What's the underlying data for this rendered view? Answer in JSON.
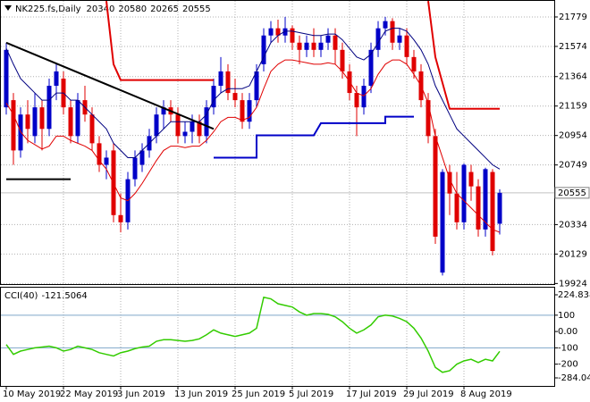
{
  "chart_data": [
    {
      "type": "candlestick",
      "title": "NK225.fs,Daily",
      "categories": [
        "10 May 2019",
        null,
        null,
        null,
        null,
        null,
        null,
        null,
        "22 May 2019",
        null,
        null,
        null,
        null,
        null,
        null,
        null,
        "3 Jun 2019",
        null,
        null,
        null,
        null,
        null,
        null,
        null,
        "13 Jun 2019",
        null,
        null,
        null,
        null,
        null,
        null,
        null,
        "25 Jun 2019",
        null,
        null,
        null,
        null,
        null,
        null,
        null,
        "5 Jul 2019",
        null,
        null,
        null,
        null,
        null,
        null,
        null,
        "17 Jul 2019",
        null,
        null,
        null,
        null,
        null,
        null,
        null,
        "29 Jul 2019",
        null,
        null,
        null,
        null,
        null,
        null,
        null,
        "8 Aug 2019",
        null,
        null,
        null,
        null,
        null
      ],
      "open": [
        21150,
        21200,
        20850,
        21100,
        20950,
        21150,
        21000,
        21300,
        21350,
        21150,
        20950,
        21200,
        21100,
        20900,
        20750,
        20850,
        20400,
        20350,
        20650,
        20750,
        20850,
        20950,
        21100,
        21150,
        21100,
        20950,
        20980,
        21050,
        20950,
        21150,
        21300,
        21400,
        21250,
        21200,
        21050,
        21200,
        21450,
        21650,
        21700,
        21650,
        21700,
        21600,
        21550,
        21600,
        21550,
        21600,
        21650,
        21550,
        21400,
        21250,
        21150,
        21300,
        21550,
        21700,
        21750,
        21600,
        21650,
        21500,
        21400,
        21200,
        20950,
        20000,
        20700,
        20550,
        20350,
        20700,
        20600,
        20300,
        20700,
        20340
      ],
      "high": [
        21600,
        21250,
        21150,
        21200,
        21250,
        21200,
        21350,
        21450,
        21400,
        21200,
        21250,
        21300,
        21150,
        20950,
        20850,
        20900,
        20550,
        20700,
        20850,
        20900,
        21000,
        21150,
        21200,
        21200,
        21150,
        21050,
        21100,
        21100,
        21200,
        21350,
        21500,
        21450,
        21350,
        21250,
        21250,
        21450,
        21700,
        21750,
        21760,
        21780,
        21720,
        21650,
        21650,
        21700,
        21650,
        21700,
        21700,
        21600,
        21450,
        21300,
        21350,
        21600,
        21750,
        21780,
        21770,
        21700,
        21700,
        21550,
        21450,
        21250,
        21000,
        20720,
        20750,
        20700,
        20760,
        20750,
        20650,
        20730,
        20720,
        20580
      ],
      "low": [
        21100,
        20750,
        20800,
        20900,
        20900,
        20850,
        20950,
        21200,
        21100,
        20900,
        20900,
        21050,
        20850,
        20700,
        20650,
        20350,
        20280,
        20300,
        20600,
        20700,
        20800,
        20900,
        21000,
        21050,
        20900,
        20900,
        20900,
        20900,
        20900,
        21100,
        21250,
        21200,
        21150,
        21000,
        21000,
        21150,
        21400,
        21600,
        21600,
        21600,
        21550,
        21450,
        21500,
        21500,
        21500,
        21550,
        21450,
        21350,
        21200,
        20950,
        21100,
        21250,
        21500,
        21650,
        21550,
        21550,
        21450,
        21350,
        21150,
        20900,
        20200,
        19980,
        20400,
        20300,
        20300,
        20500,
        20250,
        20250,
        20120,
        20265
      ],
      "close": [
        21550,
        20850,
        21100,
        21000,
        21150,
        21000,
        21300,
        21400,
        21150,
        20950,
        21200,
        21100,
        20900,
        20750,
        20800,
        20400,
        20350,
        20650,
        20800,
        20850,
        20950,
        21100,
        21150,
        21100,
        20950,
        20980,
        21050,
        20950,
        21150,
        21300,
        21400,
        21250,
        21200,
        21050,
        21200,
        21400,
        21650,
        21700,
        21650,
        21700,
        21600,
        21550,
        21600,
        21550,
        21600,
        21650,
        21550,
        21400,
        21250,
        21150,
        21300,
        21550,
        21700,
        21750,
        21600,
        21650,
        21500,
        21400,
        21200,
        20950,
        20250,
        20700,
        20550,
        20350,
        20750,
        20600,
        20300,
        20720,
        20150,
        20555
      ],
      "up_color": "#0000c8",
      "down_color": "#e00000",
      "overlays": [
        {
          "color": "#000080",
          "x": [
            0,
            1,
            2,
            3,
            4,
            5,
            6,
            7,
            8,
            9,
            10,
            11,
            12,
            13,
            14,
            15,
            16,
            17,
            18,
            19,
            20,
            21,
            22,
            23,
            24,
            25,
            26,
            27,
            28,
            29,
            30,
            31,
            32,
            33,
            34,
            35,
            36,
            37,
            38,
            39,
            40,
            41,
            42,
            43,
            44,
            45,
            46,
            47,
            48,
            49,
            50,
            51,
            52,
            53,
            54,
            55,
            56,
            57,
            58,
            59,
            60,
            61,
            62,
            63,
            64,
            65,
            66,
            67,
            68,
            69
          ],
          "values": [
            21560,
            21450,
            21350,
            21300,
            21250,
            21200,
            21200,
            21250,
            21250,
            21200,
            21200,
            21150,
            21100,
            21050,
            21000,
            20900,
            20850,
            20800,
            20800,
            20850,
            20900,
            20950,
            21000,
            21050,
            21050,
            21050,
            21050,
            21050,
            21100,
            21200,
            21250,
            21280,
            21280,
            21280,
            21300,
            21400,
            21500,
            21600,
            21650,
            21680,
            21680,
            21670,
            21660,
            21650,
            21650,
            21660,
            21660,
            21620,
            21560,
            21500,
            21480,
            21520,
            21600,
            21680,
            21700,
            21700,
            21680,
            21620,
            21550,
            21450,
            21300,
            21200,
            21100,
            21000,
            20950,
            20900,
            20850,
            20800,
            20750,
            20720
          ]
        },
        {
          "color": "#e00000",
          "x": [
            0,
            1,
            2,
            3,
            4,
            5,
            6,
            7,
            8,
            9,
            10,
            11,
            12,
            13,
            14,
            15,
            16,
            17,
            18,
            19,
            20,
            21,
            22,
            23,
            24,
            25,
            26,
            27,
            28,
            29,
            30,
            31,
            32,
            33,
            34,
            35,
            36,
            37,
            38,
            39,
            40,
            41,
            42,
            43,
            44,
            45,
            46,
            47,
            48,
            49,
            50,
            51,
            52,
            53,
            54,
            55,
            56,
            57,
            58,
            59,
            60,
            61,
            62,
            63,
            64,
            65,
            66,
            67,
            68,
            69
          ],
          "values": [
            21180,
            21100,
            20980,
            20920,
            20890,
            20860,
            20880,
            20950,
            20950,
            20920,
            20900,
            20880,
            20850,
            20780,
            20720,
            20620,
            20520,
            20500,
            20550,
            20620,
            20700,
            20780,
            20850,
            20880,
            20880,
            20870,
            20880,
            20880,
            20920,
            20980,
            21050,
            21080,
            21080,
            21060,
            21080,
            21150,
            21280,
            21400,
            21450,
            21480,
            21480,
            21470,
            21460,
            21450,
            21450,
            21460,
            21450,
            21400,
            21330,
            21250,
            21230,
            21280,
            21380,
            21450,
            21480,
            21480,
            21450,
            21380,
            21300,
            21180,
            20950,
            20800,
            20650,
            20550,
            20500,
            20450,
            20400,
            20350,
            20300,
            20280
          ]
        },
        {
          "color": "#000000",
          "x": [
            0,
            29
          ],
          "values": [
            21600,
            21000
          ]
        },
        {
          "color": "#000000",
          "x": [
            0,
            9
          ],
          "values": [
            20650,
            20650
          ]
        },
        {
          "color": "#e00000",
          "x": [
            14,
            15,
            16,
            29
          ],
          "values": [
            21890,
            21450,
            21340,
            21340
          ]
        },
        {
          "color": "#e00000",
          "x": [
            59,
            60,
            62,
            69
          ],
          "values": [
            21890,
            21500,
            21140,
            21140
          ]
        },
        {
          "color": "#0000c8",
          "x": [
            29,
            35,
            35,
            43,
            44,
            53,
            53,
            57
          ],
          "values": [
            20800,
            20800,
            20955,
            20955,
            21040,
            21040,
            21085,
            21085
          ]
        }
      ],
      "ylim": [
        19920,
        21897
      ],
      "yticks": [
        21779,
        21574,
        21364,
        21159,
        20954,
        20749,
        20334,
        20129,
        19924
      ],
      "grid": true
    },
    {
      "type": "line",
      "title": "CCI(40)",
      "color": "#33cc00",
      "values": [
        -80,
        -140,
        -120,
        -110,
        -100,
        -95,
        -90,
        -100,
        -120,
        -110,
        -90,
        -100,
        -110,
        -130,
        -140,
        -150,
        -130,
        -120,
        -105,
        -95,
        -90,
        -60,
        -50,
        -50,
        -55,
        -60,
        -55,
        -45,
        -20,
        10,
        -10,
        -20,
        -30,
        -20,
        -10,
        20,
        210,
        200,
        170,
        160,
        150,
        120,
        100,
        110,
        110,
        105,
        90,
        60,
        20,
        -10,
        10,
        40,
        90,
        100,
        95,
        80,
        60,
        20,
        -40,
        -120,
        -220,
        -250,
        -240,
        -200,
        -180,
        -170,
        -190,
        -170,
        -180,
        -121.5064
      ],
      "ylim": [
        -284.044,
        224.8386
      ],
      "yticks": [
        224.8386,
        100,
        {
          "value": 0,
          "label": "0.00"
        },
        -100,
        -200,
        -284.044
      ],
      "levels": [
        100,
        -100
      ]
    }
  ]
}
